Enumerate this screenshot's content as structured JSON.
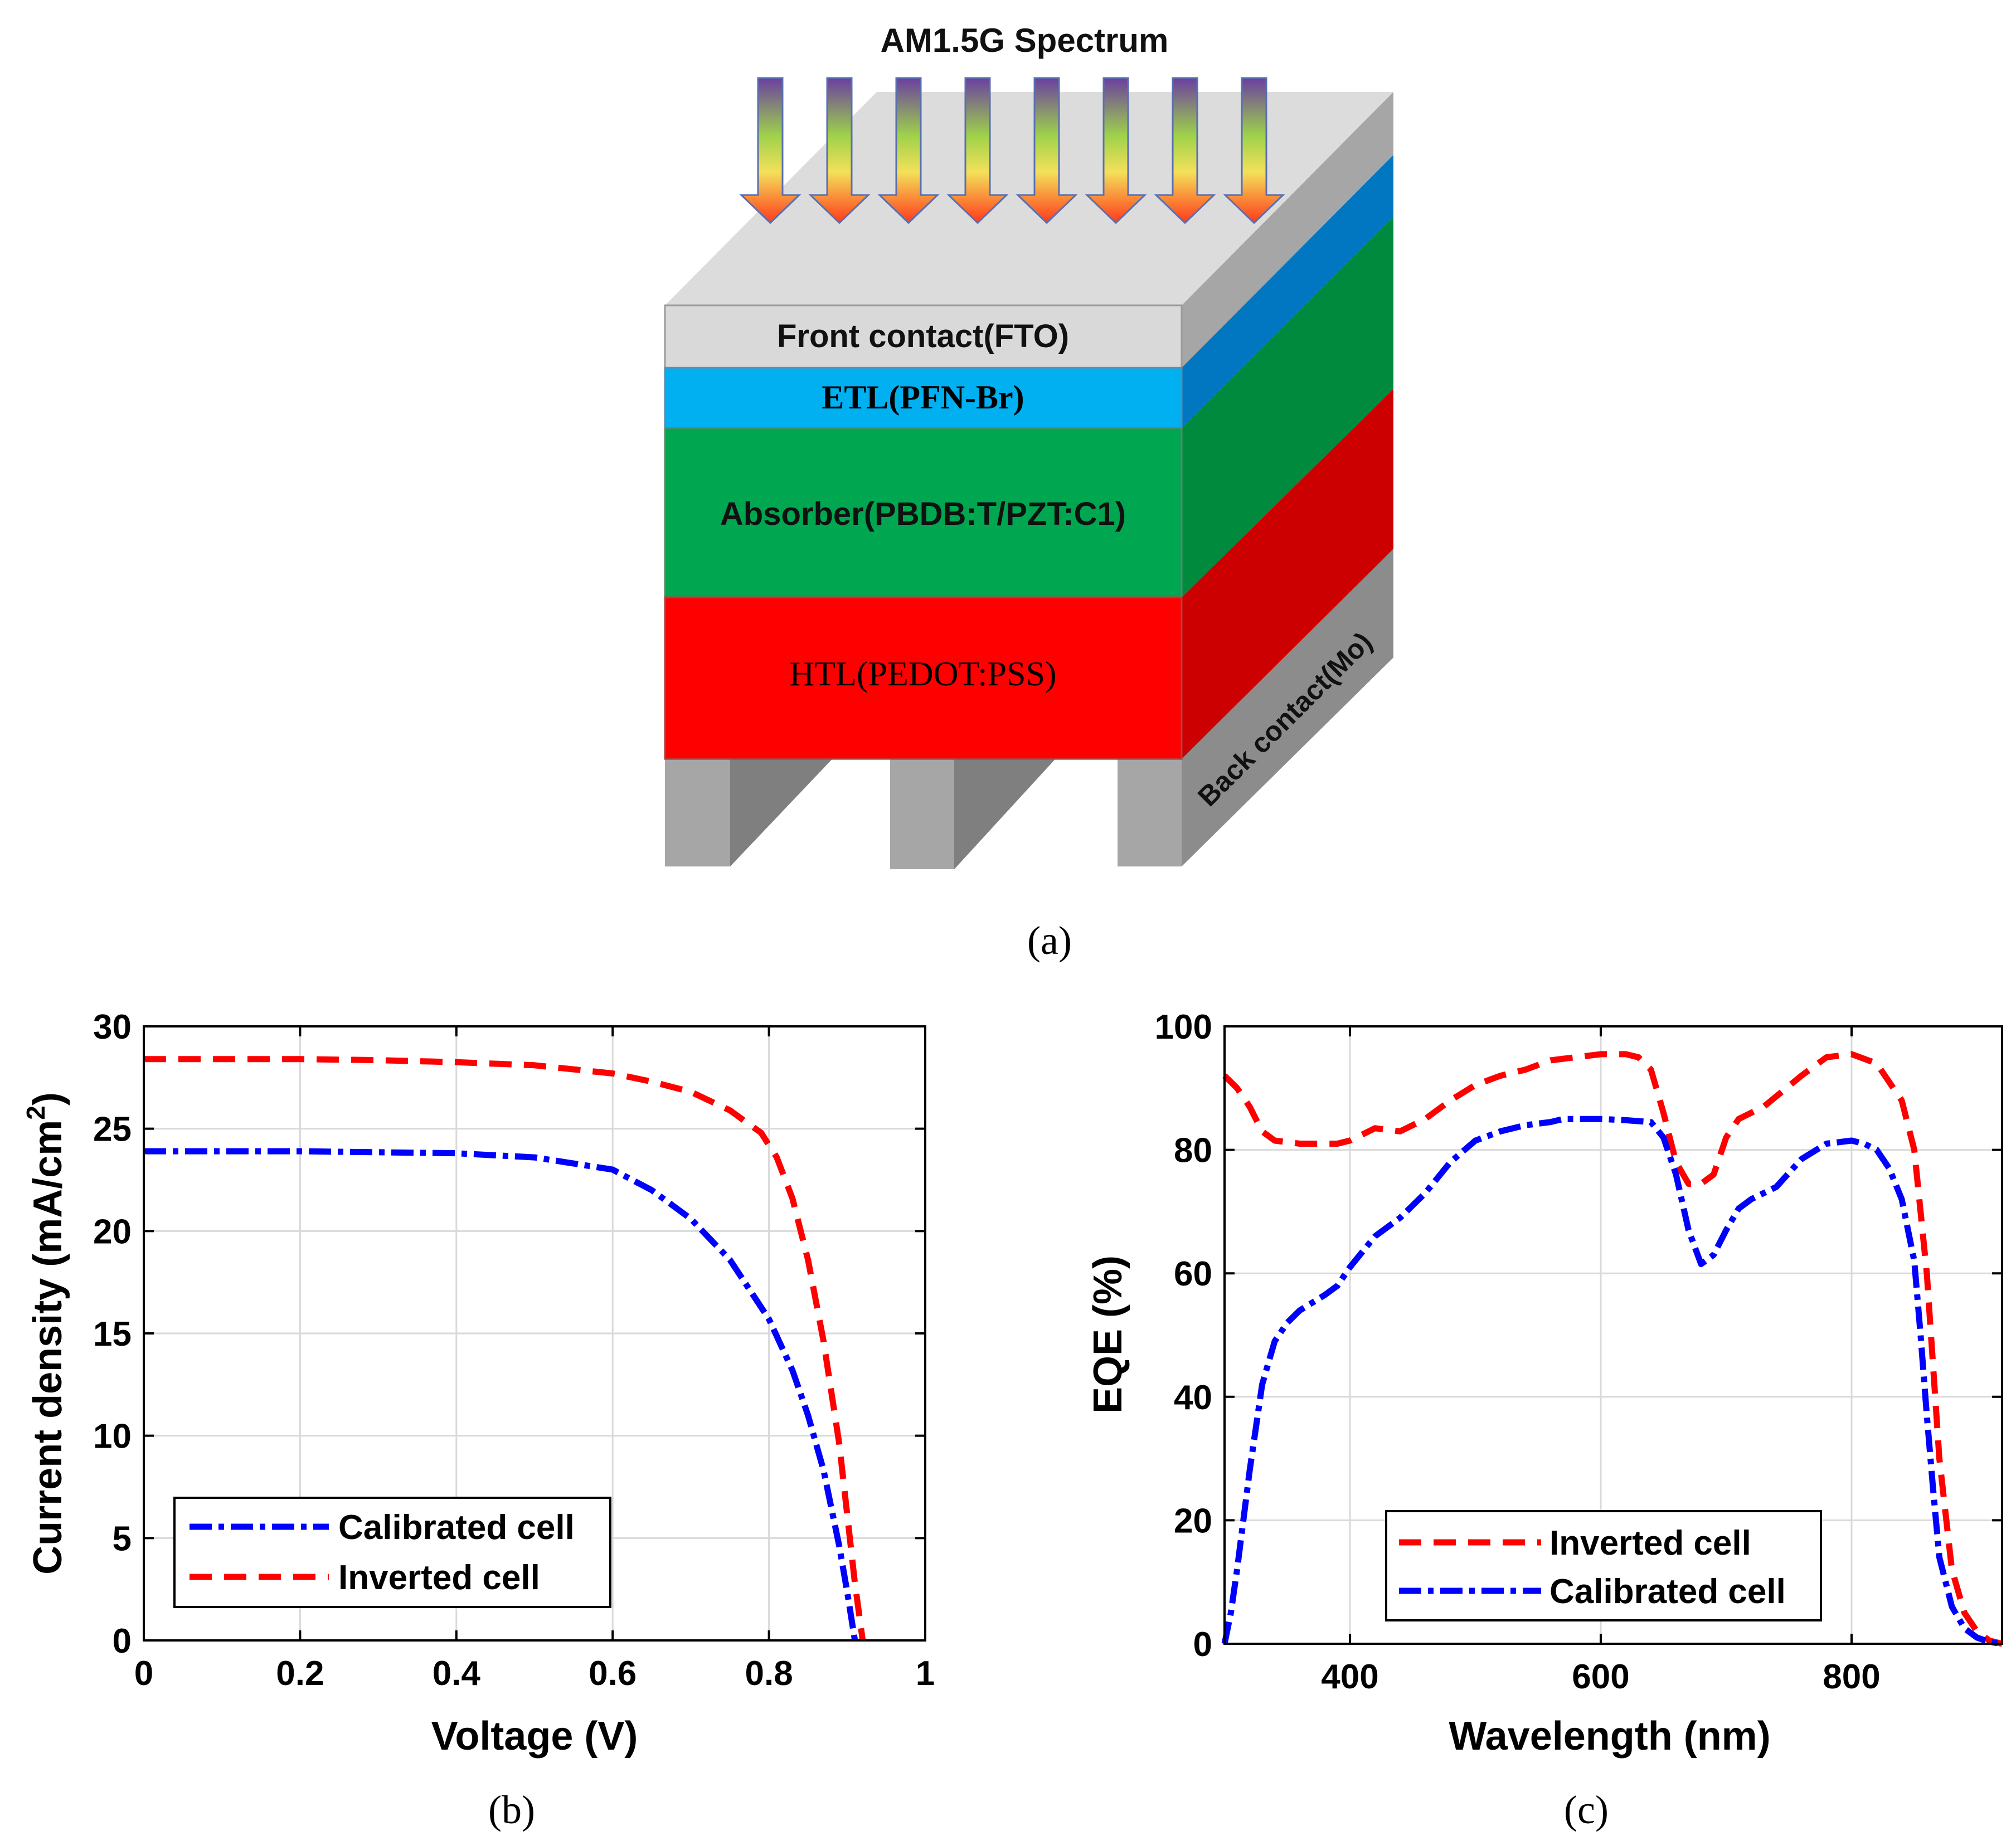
{
  "panel_a": {
    "spectrum_label": "AM1.5G Spectrum",
    "layers": {
      "front": "Front contact(FTO)",
      "etl": "ETL(PFN-Br)",
      "absorber": "Absorber(PBDB:T/PZT:C1)",
      "htl": "HTL(PEDOT:PSS)",
      "back": "Back contact(Mo)"
    },
    "caption": "(a)",
    "colors": {
      "front": "#d9d9d9",
      "etl": "#00b0f0",
      "absorber": "#00a650",
      "htl": "#ff0000",
      "back": "#a6a6a6"
    }
  },
  "chart_data": [
    {
      "type": "line",
      "caption": "(b)",
      "xlabel": "Voltage (V)",
      "ylabel": "Current density (mA/cm",
      "ylabel_sup": "2",
      "ylabel_close": ")",
      "xlim": [
        0,
        1
      ],
      "ylim": [
        0,
        30
      ],
      "xticks": [
        0,
        0.2,
        0.4,
        0.6,
        0.8,
        1
      ],
      "xtick_labels": [
        "0",
        "0.2",
        "0.4",
        "0.6",
        "0.8",
        "1"
      ],
      "yticks": [
        0,
        5,
        10,
        15,
        20,
        25,
        30
      ],
      "ytick_labels": [
        "0",
        "5",
        "10",
        "15",
        "20",
        "25",
        "30"
      ],
      "grid": true,
      "legend_position": "bottom-left",
      "series": [
        {
          "name": "Calibrated cell",
          "color": "#0000ff",
          "dash": "dashdot",
          "x": [
            0,
            0.1,
            0.2,
            0.3,
            0.4,
            0.5,
            0.55,
            0.6,
            0.65,
            0.7,
            0.75,
            0.8,
            0.83,
            0.85,
            0.87,
            0.89,
            0.9,
            0.905,
            0.91
          ],
          "y": [
            23.9,
            23.9,
            23.9,
            23.85,
            23.8,
            23.6,
            23.3,
            23.0,
            22.0,
            20.6,
            18.6,
            15.7,
            13.2,
            11.0,
            8.3,
            4.6,
            2.4,
            1.2,
            0
          ]
        },
        {
          "name": "Inverted cell",
          "color": "#ff0000",
          "dash": "dashed",
          "x": [
            0,
            0.1,
            0.2,
            0.3,
            0.4,
            0.5,
            0.6,
            0.65,
            0.7,
            0.75,
            0.79,
            0.81,
            0.83,
            0.85,
            0.87,
            0.89,
            0.9,
            0.91,
            0.92
          ],
          "y": [
            28.4,
            28.4,
            28.4,
            28.35,
            28.25,
            28.1,
            27.7,
            27.3,
            26.8,
            25.9,
            24.8,
            23.6,
            21.6,
            18.6,
            14.6,
            9.6,
            6.2,
            2.8,
            0
          ]
        }
      ]
    },
    {
      "type": "line",
      "caption": "(c)",
      "xlabel": "Wavelength (nm)",
      "ylabel": "EQE (%)",
      "xlim": [
        300,
        920
      ],
      "ylim": [
        0,
        100
      ],
      "xticks": [
        400,
        600,
        800
      ],
      "xtick_labels": [
        "400",
        "600",
        "800"
      ],
      "yticks": [
        0,
        20,
        40,
        60,
        80,
        100
      ],
      "ytick_labels": [
        "0",
        "20",
        "40",
        "60",
        "80",
        "100"
      ],
      "grid": true,
      "legend_position": "bottom-center",
      "series": [
        {
          "name": "Inverted cell",
          "color": "#ff0000",
          "dash": "dashed",
          "x": [
            300,
            310,
            320,
            330,
            340,
            360,
            380,
            390,
            400,
            420,
            440,
            460,
            480,
            500,
            520,
            540,
            560,
            580,
            600,
            620,
            630,
            640,
            650,
            660,
            670,
            680,
            690,
            700,
            710,
            730,
            760,
            780,
            800,
            820,
            840,
            850,
            860,
            870,
            880,
            890,
            900,
            910,
            920
          ],
          "y": [
            92,
            90,
            87,
            83,
            81.5,
            81,
            81,
            81,
            81.5,
            83.5,
            83,
            85,
            88,
            90.5,
            92,
            93,
            94.5,
            95,
            95.5,
            95.5,
            95,
            93,
            86,
            78,
            74.5,
            74.5,
            76,
            82,
            85,
            87,
            92,
            95,
            95.5,
            94,
            88,
            80,
            60,
            30,
            12,
            5,
            2,
            0.5,
            0
          ]
        },
        {
          "name": "Calibrated cell",
          "color": "#0000ff",
          "dash": "dashdot",
          "x": [
            300,
            305,
            310,
            320,
            330,
            340,
            350,
            360,
            380,
            390,
            400,
            410,
            420,
            440,
            460,
            480,
            500,
            520,
            540,
            560,
            570,
            580,
            600,
            620,
            640,
            650,
            660,
            670,
            680,
            690,
            700,
            710,
            720,
            740,
            760,
            780,
            800,
            810,
            820,
            830,
            840,
            850,
            855,
            860,
            865,
            870,
            880,
            890,
            900,
            910,
            920
          ],
          "y": [
            0,
            5,
            12,
            28,
            42,
            49,
            52,
            54,
            56.5,
            58,
            61,
            63.5,
            66,
            69,
            73,
            78,
            81.5,
            83,
            84,
            84.5,
            85,
            85,
            85,
            84.8,
            84.5,
            82,
            76,
            67,
            61.5,
            63,
            67,
            70.5,
            72,
            74,
            78.5,
            81,
            81.5,
            81,
            80,
            77,
            72,
            62,
            50,
            37,
            25,
            14,
            6,
            2.5,
            1,
            0.3,
            0
          ]
        }
      ]
    }
  ]
}
